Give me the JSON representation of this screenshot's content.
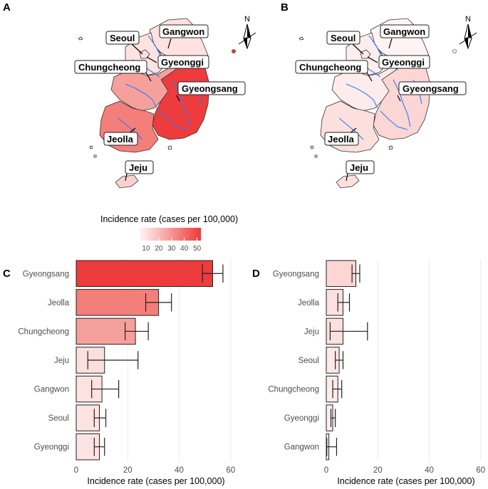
{
  "panels": {
    "A": "A",
    "B": "B",
    "C": "C",
    "D": "D"
  },
  "maps": {
    "compass_label": "N",
    "regions": [
      "Seoul",
      "Gangwon",
      "Gyeonggi",
      "Chungcheong",
      "Gyeongsang",
      "Jeolla",
      "Jeju"
    ],
    "colors": {
      "A": {
        "Seoul": "#ffe0de",
        "Gangwon": "#ffe2e0",
        "Gyeonggi": "#ffe3e1",
        "Chungcheong": "#f6a09c",
        "Gyeongsang": "#ee3b3b",
        "Jeolla": "#f47e79",
        "Jeju": "#fbd0cd"
      },
      "B": {
        "Seoul": "#fdeaea",
        "Gangwon": "#fff4f3",
        "Gyeonggi": "#fdeeed",
        "Chungcheong": "#fdeceb",
        "Gyeongsang": "#fbd6d4",
        "Jeolla": "#fbe0de",
        "Jeju": "#fbe0de"
      }
    },
    "river_color": "#2f7bff"
  },
  "legend": {
    "title": "Incidence rate (cases per 100,000)",
    "ticks": [
      "10",
      "20",
      "30",
      "40",
      "50"
    ],
    "low_color": "#fff5f5",
    "high_color": "#ee3b3b"
  },
  "chart_data": [
    {
      "type": "bar",
      "panel": "C",
      "orientation": "horizontal",
      "categories": [
        "Gyeongsang",
        "Jeolla",
        "Chungcheong",
        "Jeju",
        "Gangwon",
        "Seoul",
        "Gyeonggi"
      ],
      "values": [
        53,
        32,
        23,
        11,
        10,
        9,
        9
      ],
      "error_low": [
        49,
        27,
        19,
        4.5,
        6,
        7,
        7
      ],
      "error_high": [
        57,
        37,
        28,
        24,
        16.5,
        11.5,
        11
      ],
      "colors": [
        "#ee3b3b",
        "#f47e79",
        "#f6a09c",
        "#fce0de",
        "#fde2e0",
        "#fde3e1",
        "#fde3e1"
      ],
      "xlabel": "Incidence rate (cases per 100,000)",
      "xlim": [
        0,
        62
      ],
      "xticks": [
        "0",
        "20",
        "40",
        "60"
      ],
      "grid": true
    },
    {
      "type": "bar",
      "panel": "D",
      "orientation": "horizontal",
      "categories": [
        "Gyeongsang",
        "Jeolla",
        "Jeju",
        "Seoul",
        "Chungcheong",
        "Gyeonggi",
        "Gangwon"
      ],
      "values": [
        11.5,
        6.5,
        6.5,
        5,
        4.5,
        2.5,
        1
      ],
      "error_low": [
        10,
        4.5,
        1.5,
        3.5,
        2.5,
        1.8,
        0.2
      ],
      "error_high": [
        13,
        9,
        16,
        6.5,
        6,
        3.5,
        4
      ],
      "colors": [
        "#fbd6d4",
        "#fce0de",
        "#fce0de",
        "#fde8e7",
        "#fdeceb",
        "#fdeeed",
        "#fff4f3"
      ],
      "xlabel": "Incidence rate (cases per 100,000)",
      "xlim": [
        0,
        62
      ],
      "xticks": [
        "0",
        "20",
        "40",
        "60"
      ],
      "grid": true
    }
  ]
}
